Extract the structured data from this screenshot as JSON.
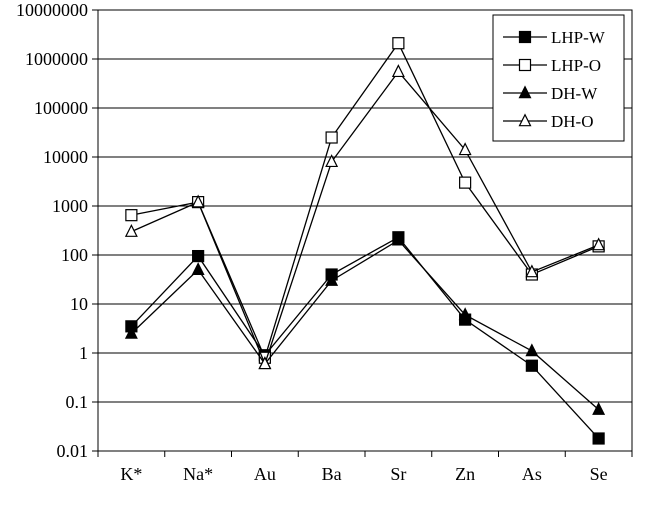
{
  "chart_data": {
    "type": "line",
    "categories": [
      "K*",
      "Na*",
      "Au",
      "Ba",
      "Sr",
      "Zn",
      "As",
      "Se"
    ],
    "y_scale": "log",
    "ylim": [
      0.01,
      10000000
    ],
    "y_ticks": [
      0.01,
      0.1,
      1,
      10,
      100,
      1000,
      10000,
      100000,
      1000000,
      10000000
    ],
    "y_tick_labels": [
      "0.01",
      "0.1",
      "1",
      "10",
      "100",
      "1000",
      "10000",
      "100000",
      "1000000",
      "10000000"
    ],
    "grid": "horizontal",
    "legend_position": "top-right",
    "series": [
      {
        "name": "LHP-W",
        "marker": "square-filled",
        "values": [
          3.5,
          95,
          0.9,
          40,
          230,
          4.8,
          0.55,
          0.018
        ]
      },
      {
        "name": "LHP-O",
        "marker": "square-open",
        "values": [
          650,
          1200,
          0.8,
          25000,
          2100000,
          3000,
          40,
          150
        ]
      },
      {
        "name": "DH-W",
        "marker": "triangle-filled",
        "values": [
          2.5,
          50,
          0.6,
          30,
          200,
          6,
          1.1,
          0.07
        ]
      },
      {
        "name": "DH-O",
        "marker": "triangle-open",
        "values": [
          300,
          1200,
          0.6,
          8000,
          550000,
          14000,
          45,
          160
        ]
      }
    ],
    "colors": {
      "line": "#000000",
      "grid": "#000000",
      "background": "#ffffff"
    }
  }
}
